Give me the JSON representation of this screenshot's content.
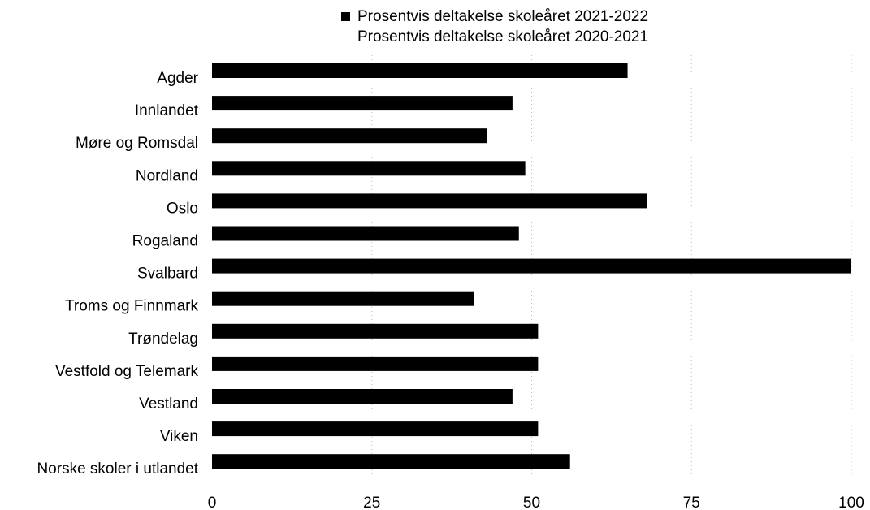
{
  "chart_data": {
    "type": "bar",
    "orientation": "horizontal",
    "categories": [
      "Agder",
      "Innlandet",
      "Møre og Romsdal",
      "Nordland",
      "Oslo",
      "Rogaland",
      "Svalbard",
      "Troms og Finnmark",
      "Trøndelag",
      "Vestfold og Telemark",
      "Vestland",
      "Viken",
      "Norske skoler i utlandet"
    ],
    "series": [
      {
        "name": "Prosentvis deltakelse skoleåret 2021-2022",
        "color": "#000000",
        "values": [
          65,
          47,
          43,
          49,
          68,
          48,
          100,
          41,
          51,
          51,
          47,
          51,
          56
        ]
      },
      {
        "name": "Prosentvis deltakelse skoleåret 2020-2021",
        "color": "#ffffff",
        "values": [
          null,
          null,
          null,
          null,
          null,
          null,
          null,
          null,
          null,
          null,
          null,
          null,
          null
        ]
      }
    ],
    "xlim": [
      0,
      100
    ],
    "xticks": [
      0,
      25,
      50,
      75,
      100
    ],
    "xlabel": "",
    "ylabel": "",
    "title": "",
    "grid": "vertical-dotted",
    "legend_position": "top"
  }
}
